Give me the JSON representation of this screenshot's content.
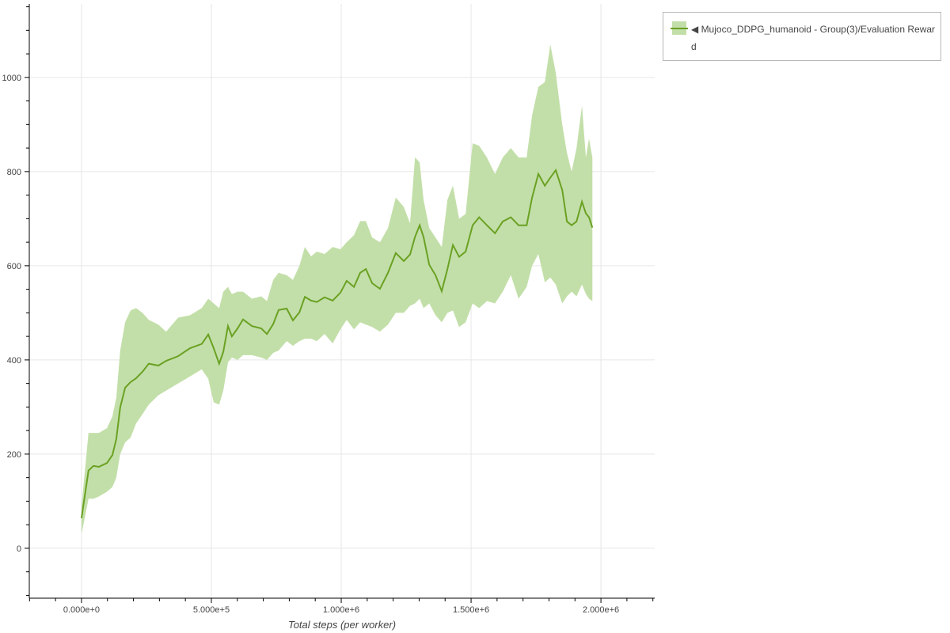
{
  "chart_data": {
    "type": "area",
    "title": "",
    "xlabel": "Total steps (per worker)",
    "ylabel": "",
    "xlim": [
      -201000,
      2207000
    ],
    "ylim": [
      -106,
      1156
    ],
    "x_ticks": [
      0,
      500000,
      1000000,
      1500000,
      2000000
    ],
    "x_tick_labels": [
      "0.000e+0",
      "5.000e+5",
      "1.000e+6",
      "1.500e+6",
      "2.000e+6"
    ],
    "y_ticks": [
      0,
      200,
      400,
      600,
      800,
      1000
    ],
    "y_tick_labels": [
      "0",
      "200",
      "400",
      "600",
      "800",
      "1000"
    ],
    "grid": true,
    "legend_position": "outside-top-right",
    "colors": {
      "line": "#6aa123",
      "band": "#c3dfa9"
    },
    "series": [
      {
        "name": "◀ Mujoco_DDPG_humanoid - Group(3)/Evaluation Reward",
        "x": [
          0,
          27000,
          46000,
          67000,
          98000,
          119000,
          134000,
          149000,
          168000,
          189000,
          210000,
          235000,
          259000,
          296000,
          326000,
          372000,
          418000,
          463000,
          488000,
          509000,
          530000,
          546000,
          564000,
          579000,
          601000,
          622000,
          656000,
          692000,
          714000,
          738000,
          759000,
          790000,
          814000,
          839000,
          860000,
          884000,
          906000,
          936000,
          967000,
          997000,
          1021000,
          1049000,
          1073000,
          1095000,
          1119000,
          1149000,
          1180000,
          1210000,
          1241000,
          1265000,
          1284000,
          1302000,
          1317000,
          1339000,
          1363000,
          1387000,
          1409000,
          1430000,
          1454000,
          1479000,
          1506000,
          1531000,
          1561000,
          1592000,
          1622000,
          1653000,
          1683000,
          1714000,
          1735000,
          1759000,
          1784000,
          1805000,
          1826000,
          1851000,
          1869000,
          1887000,
          1906000,
          1927000,
          1942000,
          1954000,
          1967000
        ],
        "mean": [
          64,
          165,
          175,
          173,
          181,
          198,
          232,
          299,
          341,
          353,
          361,
          375,
          392,
          388,
          398,
          408,
          425,
          434,
          454,
          425,
          392,
          417,
          472,
          450,
          467,
          486,
          472,
          467,
          455,
          476,
          506,
          509,
          484,
          501,
          534,
          526,
          523,
          533,
          526,
          543,
          568,
          555,
          585,
          593,
          563,
          551,
          585,
          627,
          610,
          624,
          661,
          686,
          661,
          602,
          580,
          546,
          593,
          644,
          619,
          630,
          686,
          703,
          686,
          669,
          694,
          703,
          686,
          686,
          745,
          795,
          770,
          787,
          803,
          761,
          694,
          686,
          694,
          736,
          711,
          703,
          681
        ],
        "upper": [
          89,
          245,
          245,
          245,
          255,
          280,
          320,
          420,
          480,
          505,
          510,
          500,
          485,
          475,
          460,
          490,
          495,
          510,
          530,
          520,
          510,
          545,
          555,
          540,
          545,
          545,
          530,
          535,
          525,
          570,
          585,
          580,
          570,
          600,
          640,
          620,
          630,
          625,
          640,
          635,
          650,
          665,
          695,
          695,
          660,
          650,
          680,
          745,
          725,
          690,
          830,
          820,
          740,
          680,
          660,
          640,
          740,
          770,
          700,
          710,
          860,
          855,
          830,
          795,
          830,
          850,
          830,
          830,
          920,
          980,
          990,
          1070,
          1010,
          900,
          840,
          800,
          850,
          940,
          830,
          870,
          830
        ],
        "lower": [
          30,
          105,
          105,
          110,
          120,
          130,
          150,
          200,
          225,
          235,
          265,
          285,
          305,
          325,
          335,
          350,
          365,
          380,
          360,
          310,
          305,
          335,
          395,
          405,
          400,
          410,
          410,
          405,
          400,
          415,
          420,
          440,
          430,
          440,
          445,
          445,
          440,
          455,
          435,
          465,
          485,
          465,
          480,
          475,
          470,
          460,
          475,
          500,
          500,
          515,
          520,
          530,
          510,
          520,
          495,
          480,
          500,
          505,
          470,
          480,
          520,
          510,
          525,
          520,
          545,
          580,
          530,
          555,
          600,
          625,
          565,
          575,
          560,
          520,
          535,
          545,
          535,
          560,
          540,
          530,
          525
        ]
      }
    ]
  }
}
